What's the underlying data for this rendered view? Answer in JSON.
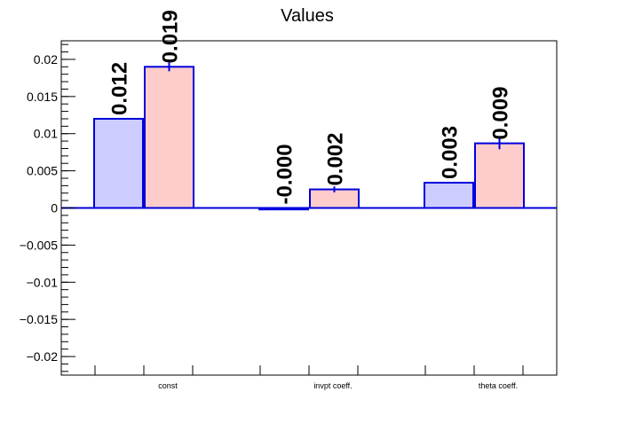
{
  "chart_data": {
    "type": "bar",
    "title": "Values",
    "xlabel": "",
    "ylabel": "",
    "categories": [
      "const",
      "invpt coeff.",
      "theta coeff."
    ],
    "ylim": [
      -0.0225,
      0.0225
    ],
    "yticks": [
      {
        "value": 0.02,
        "label": "0.02"
      },
      {
        "value": 0.015,
        "label": "0.015"
      },
      {
        "value": 0.01,
        "label": "0.01"
      },
      {
        "value": 0.005,
        "label": "0.005"
      },
      {
        "value": 0,
        "label": "0"
      },
      {
        "value": -0.005,
        "label": "−0.005"
      },
      {
        "value": -0.01,
        "label": "−0.01"
      },
      {
        "value": -0.015,
        "label": "−0.015"
      },
      {
        "value": -0.02,
        "label": "−0.02"
      }
    ],
    "series": [
      {
        "fill": "#ccccff",
        "edge": "#0000dd",
        "values": [
          0.012,
          -0.0002,
          0.0034
        ],
        "labels": [
          "0.012",
          "-0.000",
          "0.003"
        ]
      },
      {
        "fill": "#ffcccc",
        "edge": "#0000dd",
        "values": [
          0.019,
          0.0025,
          0.0087
        ],
        "errors": [
          0.0006,
          0.0004,
          0.0008
        ],
        "labels": [
          "0.019",
          "0.002",
          "0.009"
        ]
      }
    ],
    "grid": false,
    "legend": "none"
  }
}
